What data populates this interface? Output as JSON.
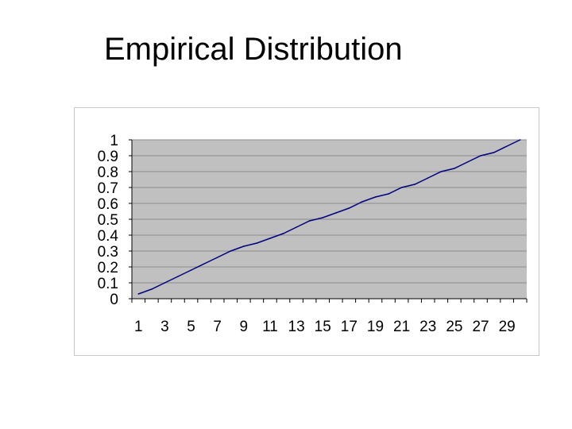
{
  "slide": {
    "title": "Empirical Distribution"
  },
  "chart_data": {
    "type": "line",
    "title": "",
    "xlabel": "",
    "ylabel": "",
    "x": [
      1,
      2,
      3,
      4,
      5,
      6,
      7,
      8,
      9,
      10,
      11,
      12,
      13,
      14,
      15,
      16,
      17,
      18,
      19,
      20,
      21,
      22,
      23,
      24,
      25,
      26,
      27,
      28,
      29,
      30
    ],
    "x_tick_labels": [
      "1",
      "3",
      "5",
      "7",
      "9",
      "11",
      "13",
      "15",
      "17",
      "19",
      "21",
      "23",
      "25",
      "27",
      "29"
    ],
    "y_tick_labels": [
      "0",
      "0.1",
      "0.2",
      "0.3",
      "0.4",
      "0.5",
      "0.6",
      "0.7",
      "0.8",
      "0.9",
      "1"
    ],
    "ylim": [
      0,
      1
    ],
    "grid": true,
    "legend": "none",
    "series": [
      {
        "values": [
          0.03,
          0.06,
          0.1,
          0.14,
          0.18,
          0.22,
          0.26,
          0.3,
          0.33,
          0.35,
          0.38,
          0.41,
          0.45,
          0.49,
          0.51,
          0.54,
          0.57,
          0.61,
          0.64,
          0.66,
          0.7,
          0.72,
          0.76,
          0.8,
          0.82,
          0.86,
          0.9,
          0.92,
          0.96,
          1.0
        ]
      }
    ],
    "colors": {
      "plot_bg": "#c0c0c0",
      "grid": "#8c8c8c",
      "line": "#000080"
    }
  }
}
